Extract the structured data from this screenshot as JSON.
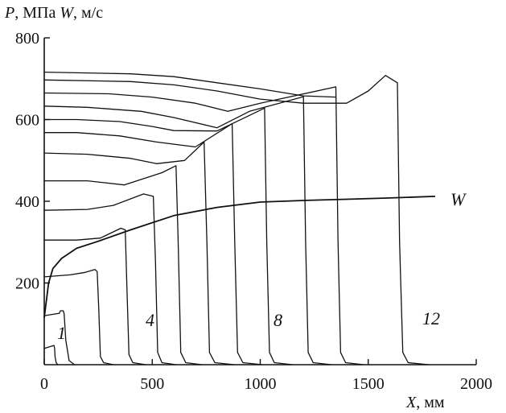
{
  "chart_data": {
    "type": "line",
    "ylabel_p_symbol": "P",
    "ylabel_p_unit": ", МПа ",
    "ylabel_w_symbol": "W",
    "ylabel_w_unit": ", м/с",
    "xlabel_symbol": "X",
    "xlabel_unit": ", мм",
    "xlim": [
      0,
      2000
    ],
    "ylim": [
      0,
      800
    ],
    "xticks": [
      0,
      500,
      1000,
      1500,
      2000
    ],
    "yticks": [
      200,
      400,
      600,
      800
    ],
    "grid": false,
    "series": [
      {
        "label": "1",
        "x": [
          0,
          45,
          48,
          50,
          55,
          63
        ],
        "y": [
          40,
          47,
          40,
          20,
          5,
          0
        ]
      },
      {
        "label": "",
        "x": [
          0,
          70,
          75,
          88,
          92,
          100,
          115,
          140
        ],
        "y": [
          120,
          126,
          132,
          132,
          125,
          60,
          10,
          0
        ]
      },
      {
        "label": "",
        "x": [
          0,
          120,
          190,
          235,
          245,
          252,
          260,
          275,
          320
        ],
        "y": [
          215,
          220,
          226,
          233,
          228,
          140,
          20,
          5,
          0
        ]
      },
      {
        "label": "4",
        "x": [
          0,
          150,
          260,
          355,
          375,
          382,
          392,
          410,
          470
        ],
        "y": [
          305,
          305,
          310,
          334,
          330,
          200,
          25,
          5,
          0
        ]
      },
      {
        "label": "",
        "x": [
          0,
          200,
          320,
          460,
          505,
          515,
          525,
          545,
          610
        ],
        "y": [
          378,
          380,
          390,
          418,
          412,
          250,
          30,
          5,
          0
        ]
      },
      {
        "label": "",
        "x": [
          0,
          200,
          370,
          545,
          610,
          620,
          632,
          655,
          730
        ],
        "y": [
          450,
          450,
          440,
          470,
          487,
          300,
          30,
          5,
          0
        ]
      },
      {
        "label": "",
        "x": [
          0,
          200,
          400,
          520,
          650,
          740,
          753,
          765,
          790,
          880
        ],
        "y": [
          518,
          515,
          505,
          492,
          500,
          545,
          300,
          30,
          5,
          0
        ]
      },
      {
        "label": "8",
        "x": [
          0,
          150,
          350,
          520,
          700,
          870,
          882,
          895,
          920,
          1010
        ],
        "y": [
          568,
          568,
          560,
          545,
          533,
          590,
          300,
          30,
          5,
          0
        ]
      },
      {
        "label": "",
        "x": [
          0,
          150,
          350,
          500,
          600,
          800,
          1020,
          1030,
          1043,
          1065,
          1150
        ],
        "y": [
          600,
          600,
          595,
          583,
          573,
          572,
          628,
          300,
          30,
          5,
          0
        ]
      },
      {
        "label": "",
        "x": [
          0,
          200,
          450,
          600,
          800,
          950,
          1200,
          1210,
          1222,
          1245,
          1330
        ],
        "y": [
          633,
          630,
          620,
          605,
          580,
          620,
          656,
          300,
          30,
          5,
          0
        ]
      },
      {
        "label": "",
        "x": [
          0,
          300,
          500,
          700,
          850,
          1000,
          1350,
          1360,
          1372,
          1395,
          1480
        ],
        "y": [
          665,
          663,
          655,
          640,
          620,
          640,
          680,
          300,
          30,
          5,
          0
        ]
      },
      {
        "label": "12",
        "x": [
          0,
          400,
          600,
          800,
          1000,
          1200,
          1400,
          1500,
          1580,
          1635,
          1645,
          1660,
          1685,
          1780
        ],
        "y": [
          697,
          693,
          685,
          670,
          650,
          640,
          640,
          670,
          708,
          690,
          300,
          30,
          5,
          0
        ]
      },
      {
        "label": "",
        "x": [
          0,
          400,
          600,
          800,
          1000,
          1200,
          1350
        ],
        "y": [
          716,
          712,
          705,
          690,
          675,
          658,
          655
        ]
      },
      {
        "label": "W",
        "x": [
          0,
          20,
          40,
          80,
          150,
          250,
          400,
          600,
          800,
          1000,
          1200,
          1400,
          1600,
          1810
        ],
        "y": [
          115,
          200,
          235,
          260,
          285,
          302,
          330,
          365,
          385,
          398,
          402,
          405,
          408,
          412
        ]
      }
    ],
    "curve_labels": [
      "1",
      "4",
      "8",
      "12",
      "W"
    ]
  }
}
